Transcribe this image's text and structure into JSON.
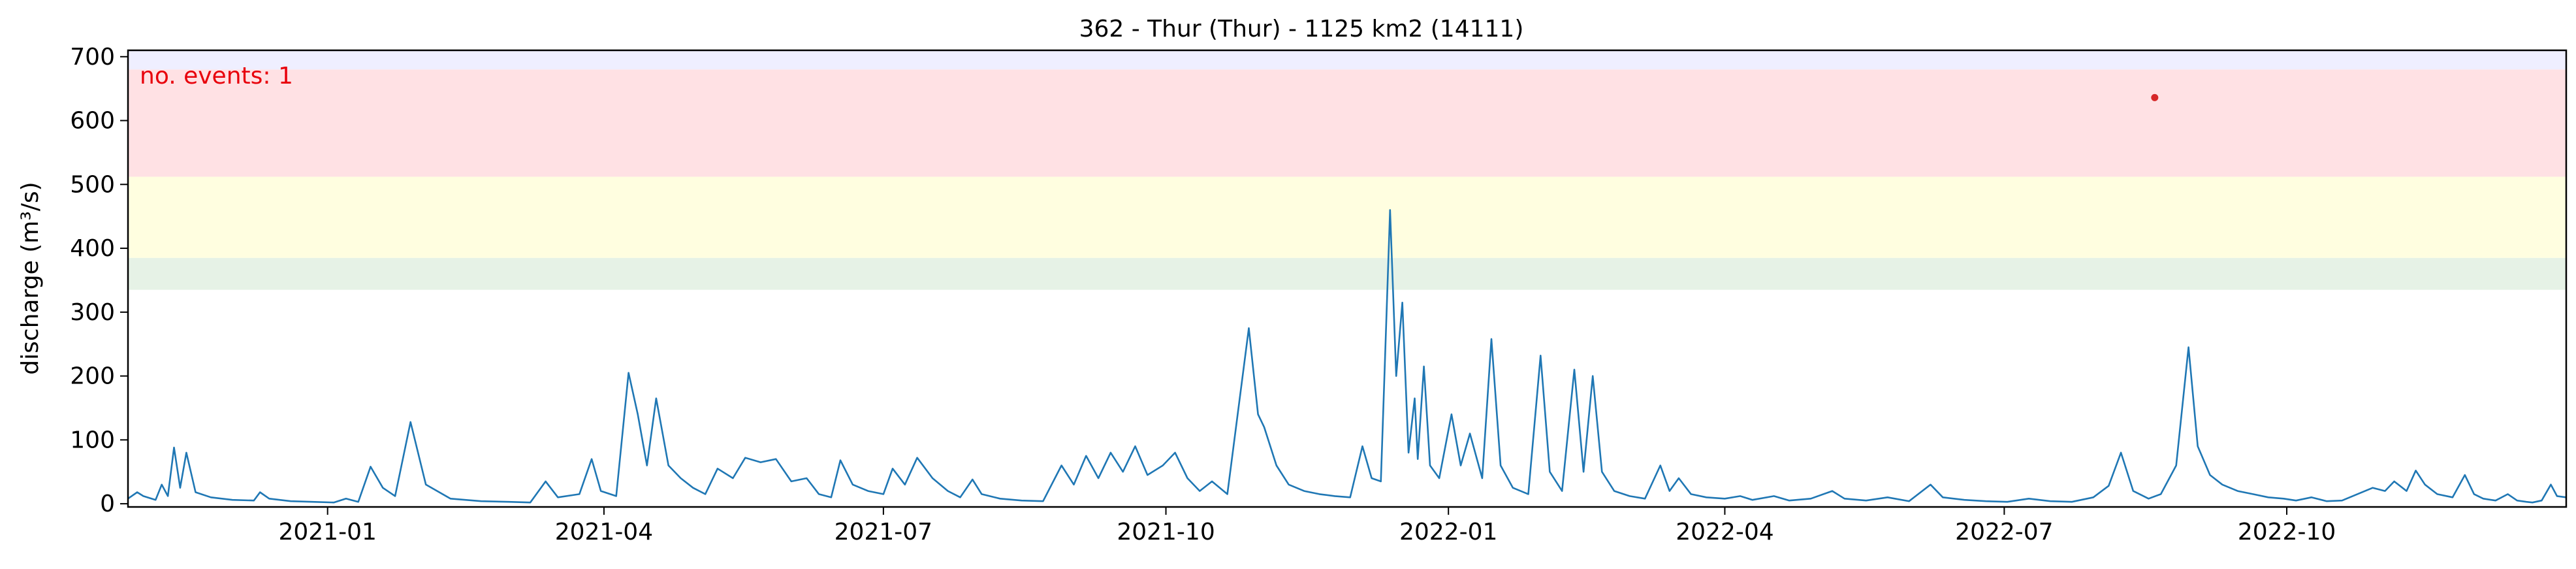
{
  "chart_data": {
    "type": "line",
    "title": "362 - Thur (Thur) - 1125 km2 (14111)",
    "xlabel": "",
    "ylabel": "discharge (m³/s)",
    "xlim": [
      "2020-10-28",
      "2022-12-31"
    ],
    "ylim": [
      -5,
      710
    ],
    "yticks": [
      0,
      100,
      200,
      300,
      400,
      500,
      600,
      700
    ],
    "xticks": [
      "2021-01-01",
      "2021-04-01",
      "2021-07-01",
      "2021-10-01",
      "2022-01-01",
      "2022-04-01",
      "2022-07-01",
      "2022-10-01"
    ],
    "xtick_labels": [
      "2021-01",
      "2021-04",
      "2021-07",
      "2021-10",
      "2022-01",
      "2022-04",
      "2022-07",
      "2022-10"
    ],
    "grid": false,
    "bands": [
      {
        "from": 335,
        "to": 385,
        "color": "#e6f2e6"
      },
      {
        "from": 385,
        "to": 512,
        "color": "#fffee0"
      },
      {
        "from": 512,
        "to": 680,
        "color": "#ffe1e4"
      },
      {
        "from": 680,
        "to": 710,
        "color": "#efefff"
      }
    ],
    "annotation": {
      "text": "no. events: 1",
      "color": "#e8000b"
    },
    "event_marker": {
      "x": "2022-08-19",
      "y": 636,
      "color": "#d62728"
    },
    "series": [
      {
        "color": "#1f77b4",
        "points": [
          [
            "2020-10-28",
            8
          ],
          [
            "2020-10-31",
            18
          ],
          [
            "2020-11-02",
            12
          ],
          [
            "2020-11-06",
            6
          ],
          [
            "2020-11-08",
            30
          ],
          [
            "2020-11-10",
            12
          ],
          [
            "2020-11-12",
            88
          ],
          [
            "2020-11-14",
            25
          ],
          [
            "2020-11-16",
            80
          ],
          [
            "2020-11-19",
            18
          ],
          [
            "2020-11-24",
            10
          ],
          [
            "2020-12-01",
            6
          ],
          [
            "2020-12-08",
            5
          ],
          [
            "2020-12-10",
            18
          ],
          [
            "2020-12-13",
            8
          ],
          [
            "2020-12-20",
            4
          ],
          [
            "2020-12-27",
            3
          ],
          [
            "2021-01-03",
            2
          ],
          [
            "2021-01-07",
            8
          ],
          [
            "2021-01-11",
            3
          ],
          [
            "2021-01-15",
            58
          ],
          [
            "2021-01-19",
            25
          ],
          [
            "2021-01-23",
            12
          ],
          [
            "2021-01-28",
            128
          ],
          [
            "2021-02-02",
            30
          ],
          [
            "2021-02-10",
            8
          ],
          [
            "2021-02-20",
            4
          ],
          [
            "2021-03-01",
            3
          ],
          [
            "2021-03-08",
            2
          ],
          [
            "2021-03-13",
            35
          ],
          [
            "2021-03-17",
            10
          ],
          [
            "2021-03-24",
            15
          ],
          [
            "2021-03-28",
            70
          ],
          [
            "2021-03-31",
            20
          ],
          [
            "2021-04-05",
            12
          ],
          [
            "2021-04-09",
            205
          ],
          [
            "2021-04-12",
            140
          ],
          [
            "2021-04-15",
            60
          ],
          [
            "2021-04-18",
            165
          ],
          [
            "2021-04-22",
            60
          ],
          [
            "2021-04-26",
            40
          ],
          [
            "2021-04-30",
            25
          ],
          [
            "2021-05-04",
            15
          ],
          [
            "2021-05-08",
            55
          ],
          [
            "2021-05-13",
            40
          ],
          [
            "2021-05-17",
            72
          ],
          [
            "2021-05-22",
            65
          ],
          [
            "2021-05-27",
            70
          ],
          [
            "2021-06-01",
            35
          ],
          [
            "2021-06-06",
            40
          ],
          [
            "2021-06-10",
            15
          ],
          [
            "2021-06-14",
            10
          ],
          [
            "2021-06-17",
            68
          ],
          [
            "2021-06-21",
            30
          ],
          [
            "2021-06-26",
            20
          ],
          [
            "2021-07-01",
            15
          ],
          [
            "2021-07-04",
            55
          ],
          [
            "2021-07-08",
            30
          ],
          [
            "2021-07-12",
            72
          ],
          [
            "2021-07-17",
            40
          ],
          [
            "2021-07-22",
            20
          ],
          [
            "2021-07-26",
            10
          ],
          [
            "2021-07-30",
            38
          ],
          [
            "2021-08-02",
            15
          ],
          [
            "2021-08-08",
            8
          ],
          [
            "2021-08-15",
            5
          ],
          [
            "2021-08-22",
            4
          ],
          [
            "2021-08-28",
            60
          ],
          [
            "2021-09-01",
            30
          ],
          [
            "2021-09-05",
            75
          ],
          [
            "2021-09-09",
            40
          ],
          [
            "2021-09-13",
            80
          ],
          [
            "2021-09-17",
            50
          ],
          [
            "2021-09-21",
            90
          ],
          [
            "2021-09-25",
            45
          ],
          [
            "2021-09-30",
            60
          ],
          [
            "2021-10-04",
            80
          ],
          [
            "2021-10-08",
            40
          ],
          [
            "2021-10-12",
            20
          ],
          [
            "2021-10-16",
            35
          ],
          [
            "2021-10-21",
            15
          ],
          [
            "2021-10-28",
            275
          ],
          [
            "2021-10-31",
            140
          ],
          [
            "2021-11-02",
            120
          ],
          [
            "2021-11-06",
            60
          ],
          [
            "2021-11-10",
            30
          ],
          [
            "2021-11-15",
            20
          ],
          [
            "2021-11-20",
            15
          ],
          [
            "2021-11-25",
            12
          ],
          [
            "2021-11-30",
            10
          ],
          [
            "2021-12-04",
            90
          ],
          [
            "2021-12-07",
            40
          ],
          [
            "2021-12-10",
            35
          ],
          [
            "2021-12-13",
            460
          ],
          [
            "2021-12-15",
            200
          ],
          [
            "2021-12-17",
            315
          ],
          [
            "2021-12-19",
            80
          ],
          [
            "2021-12-21",
            165
          ],
          [
            "2021-12-22",
            70
          ],
          [
            "2021-12-24",
            215
          ],
          [
            "2021-12-26",
            60
          ],
          [
            "2021-12-29",
            40
          ],
          [
            "2022-01-02",
            140
          ],
          [
            "2022-01-05",
            60
          ],
          [
            "2022-01-08",
            110
          ],
          [
            "2022-01-12",
            40
          ],
          [
            "2022-01-15",
            258
          ],
          [
            "2022-01-18",
            60
          ],
          [
            "2022-01-22",
            25
          ],
          [
            "2022-01-27",
            15
          ],
          [
            "2022-01-31",
            232
          ],
          [
            "2022-02-03",
            50
          ],
          [
            "2022-02-07",
            20
          ],
          [
            "2022-02-11",
            210
          ],
          [
            "2022-02-14",
            50
          ],
          [
            "2022-02-17",
            200
          ],
          [
            "2022-02-20",
            50
          ],
          [
            "2022-02-24",
            20
          ],
          [
            "2022-03-01",
            12
          ],
          [
            "2022-03-06",
            8
          ],
          [
            "2022-03-11",
            60
          ],
          [
            "2022-03-14",
            20
          ],
          [
            "2022-03-17",
            40
          ],
          [
            "2022-03-21",
            15
          ],
          [
            "2022-03-26",
            10
          ],
          [
            "2022-04-01",
            8
          ],
          [
            "2022-04-06",
            12
          ],
          [
            "2022-04-10",
            6
          ],
          [
            "2022-04-17",
            12
          ],
          [
            "2022-04-22",
            5
          ],
          [
            "2022-04-29",
            8
          ],
          [
            "2022-05-06",
            20
          ],
          [
            "2022-05-10",
            8
          ],
          [
            "2022-05-17",
            5
          ],
          [
            "2022-05-24",
            10
          ],
          [
            "2022-05-31",
            4
          ],
          [
            "2022-06-07",
            30
          ],
          [
            "2022-06-11",
            10
          ],
          [
            "2022-06-18",
            6
          ],
          [
            "2022-06-25",
            4
          ],
          [
            "2022-07-02",
            3
          ],
          [
            "2022-07-09",
            8
          ],
          [
            "2022-07-16",
            4
          ],
          [
            "2022-07-23",
            3
          ],
          [
            "2022-07-30",
            10
          ],
          [
            "2022-08-04",
            28
          ],
          [
            "2022-08-08",
            80
          ],
          [
            "2022-08-12",
            20
          ],
          [
            "2022-08-17",
            8
          ],
          [
            "2022-08-21",
            15
          ],
          [
            "2022-08-26",
            60
          ],
          [
            "2022-08-30",
            245
          ],
          [
            "2022-09-02",
            90
          ],
          [
            "2022-09-06",
            45
          ],
          [
            "2022-09-10",
            30
          ],
          [
            "2022-09-15",
            20
          ],
          [
            "2022-09-20",
            15
          ],
          [
            "2022-09-25",
            10
          ],
          [
            "2022-09-30",
            8
          ],
          [
            "2022-10-04",
            5
          ],
          [
            "2022-10-09",
            10
          ],
          [
            "2022-10-14",
            4
          ],
          [
            "2022-10-19",
            5
          ],
          [
            "2022-10-24",
            15
          ],
          [
            "2022-10-29",
            25
          ],
          [
            "2022-11-02",
            20
          ],
          [
            "2022-11-05",
            35
          ],
          [
            "2022-11-09",
            20
          ],
          [
            "2022-11-12",
            52
          ],
          [
            "2022-11-15",
            30
          ],
          [
            "2022-11-19",
            15
          ],
          [
            "2022-11-24",
            10
          ],
          [
            "2022-11-28",
            45
          ],
          [
            "2022-12-01",
            15
          ],
          [
            "2022-12-04",
            8
          ],
          [
            "2022-12-08",
            5
          ],
          [
            "2022-12-12",
            15
          ],
          [
            "2022-12-15",
            5
          ],
          [
            "2022-12-18",
            3
          ],
          [
            "2022-12-20",
            2
          ],
          [
            "2022-12-23",
            5
          ],
          [
            "2022-12-26",
            30
          ],
          [
            "2022-12-28",
            12
          ],
          [
            "2022-12-31",
            10
          ]
        ]
      }
    ]
  }
}
